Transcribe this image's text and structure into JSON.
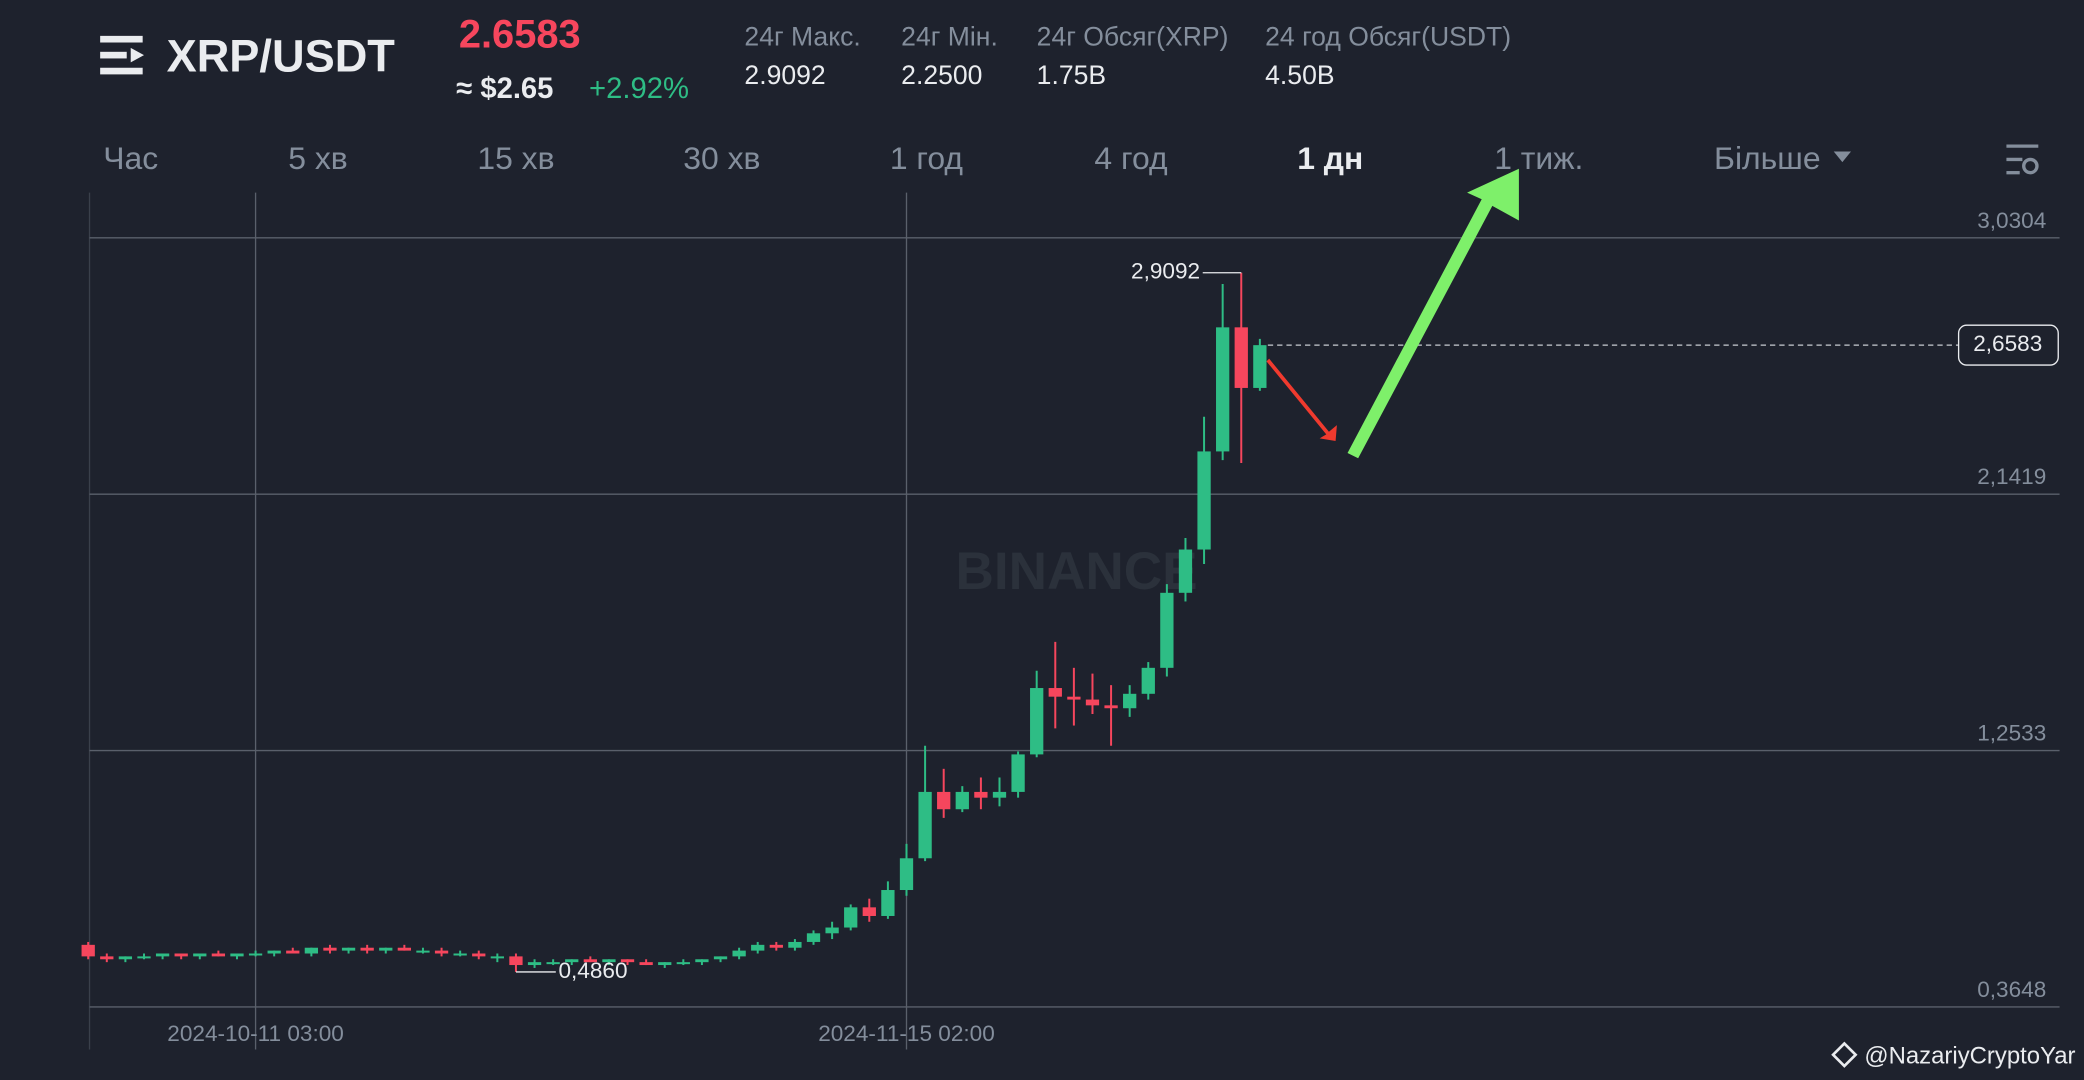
{
  "header": {
    "pair": "XRP/USDT",
    "price": "2.6583",
    "usd_price": "≈ $2.65",
    "change": "+2.92%",
    "stats": [
      {
        "label": "24г Макс.",
        "value": "2.9092"
      },
      {
        "label": "24г Мін.",
        "value": "2.2500"
      },
      {
        "label": "24г Обсяг(XRP)",
        "value": "1.75B"
      },
      {
        "label": "24 год Обсяг(USDT)",
        "value": "4.50B"
      }
    ]
  },
  "tabs": [
    "Час",
    "5 хв",
    "15 хв",
    "30 хв",
    "1 год",
    "4 год",
    "1 дн",
    "1 тиж.",
    "Більше"
  ],
  "active_tab": 6,
  "watermark": "BINANCE",
  "credit": "@NazariyCryptoYar",
  "chart_data": {
    "type": "candlestick",
    "categories": [
      null,
      null,
      null,
      null,
      null,
      null,
      null,
      null,
      null,
      "2024-10-11 03:00",
      null,
      null,
      null,
      null,
      null,
      null,
      null,
      null,
      null,
      null,
      null,
      null,
      null,
      null,
      null,
      null,
      null,
      null,
      null,
      null,
      null,
      null,
      null,
      null,
      null,
      null,
      null,
      null,
      null,
      null,
      null,
      null,
      null,
      null,
      "2024-11-15 02:00",
      null,
      null,
      null,
      null,
      null,
      null,
      null,
      null,
      null,
      null,
      null,
      null,
      null,
      null,
      null,
      null,
      null,
      null,
      null
    ],
    "open": [
      0.58,
      0.54,
      0.53,
      0.54,
      0.54,
      0.55,
      0.54,
      0.55,
      0.54,
      0.55,
      0.55,
      0.56,
      0.55,
      0.57,
      0.56,
      0.57,
      0.56,
      0.57,
      0.56,
      0.56,
      0.55,
      0.55,
      0.54,
      0.54,
      0.51,
      0.52,
      0.52,
      0.53,
      0.52,
      0.53,
      0.52,
      0.51,
      0.52,
      0.52,
      0.53,
      0.54,
      0.56,
      0.58,
      0.57,
      0.59,
      0.62,
      0.64,
      0.71,
      0.68,
      0.77,
      0.88,
      1.11,
      1.05,
      1.11,
      1.09,
      1.11,
      1.24,
      1.47,
      1.44,
      1.43,
      1.41,
      1.4,
      1.45,
      1.54,
      1.8,
      1.95,
      2.29,
      2.72,
      2.51
    ],
    "high": [
      0.59,
      0.55,
      0.54,
      0.55,
      0.55,
      0.55,
      0.55,
      0.56,
      0.55,
      0.56,
      0.56,
      0.57,
      0.57,
      0.58,
      0.57,
      0.58,
      0.57,
      0.58,
      0.57,
      0.57,
      0.56,
      0.56,
      0.55,
      0.55,
      0.53,
      0.53,
      0.53,
      0.54,
      0.53,
      0.53,
      0.53,
      0.52,
      0.53,
      0.53,
      0.54,
      0.57,
      0.59,
      0.59,
      0.6,
      0.63,
      0.66,
      0.72,
      0.74,
      0.8,
      0.93,
      1.27,
      1.19,
      1.13,
      1.16,
      1.16,
      1.25,
      1.53,
      1.63,
      1.54,
      1.52,
      1.48,
      1.48,
      1.56,
      1.83,
      1.99,
      2.41,
      2.87,
      2.9092,
      2.68
    ],
    "low": [
      0.53,
      0.52,
      0.52,
      0.53,
      0.53,
      0.53,
      0.53,
      0.54,
      0.53,
      0.54,
      0.54,
      0.55,
      0.54,
      0.55,
      0.55,
      0.55,
      0.55,
      0.56,
      0.55,
      0.54,
      0.54,
      0.53,
      0.52,
      0.486,
      0.5,
      0.51,
      0.51,
      0.52,
      0.51,
      0.51,
      0.51,
      0.5,
      0.51,
      0.51,
      0.52,
      0.53,
      0.55,
      0.56,
      0.56,
      0.58,
      0.6,
      0.63,
      0.66,
      0.67,
      0.75,
      0.87,
      1.02,
      1.04,
      1.05,
      1.06,
      1.09,
      1.23,
      1.33,
      1.34,
      1.38,
      1.27,
      1.37,
      1.43,
      1.51,
      1.77,
      1.9,
      2.26,
      2.25,
      2.5
    ],
    "close": [
      0.54,
      0.53,
      0.54,
      0.54,
      0.55,
      0.54,
      0.55,
      0.54,
      0.55,
      0.55,
      0.56,
      0.55,
      0.57,
      0.56,
      0.57,
      0.56,
      0.57,
      0.56,
      0.56,
      0.55,
      0.55,
      0.54,
      0.54,
      0.51,
      0.52,
      0.52,
      0.53,
      0.52,
      0.53,
      0.52,
      0.51,
      0.52,
      0.52,
      0.53,
      0.54,
      0.56,
      0.58,
      0.57,
      0.59,
      0.62,
      0.64,
      0.71,
      0.68,
      0.77,
      0.88,
      1.11,
      1.05,
      1.11,
      1.09,
      1.11,
      1.24,
      1.47,
      1.44,
      1.43,
      1.41,
      1.4,
      1.45,
      1.54,
      1.8,
      1.95,
      2.29,
      2.72,
      2.51,
      2.6583
    ],
    "up_color": "#2ebd85",
    "down_color": "#f6465d",
    "ylim": [
      0.3648,
      3.1869
    ],
    "yticks": [
      {
        "value": 0.3648,
        "label": "0,3648"
      },
      {
        "value": 1.2533,
        "label": "1,2533"
      },
      {
        "value": 2.1419,
        "label": "2,1419"
      },
      {
        "value": 3.0304,
        "label": "3,0304"
      }
    ],
    "high_label": {
      "value": 2.9092,
      "label": "2,9092"
    },
    "low_label": {
      "value": 0.486,
      "label": "0,4860"
    },
    "last_price": {
      "value": 2.6583,
      "label": "2,6583"
    },
    "grid": true
  }
}
